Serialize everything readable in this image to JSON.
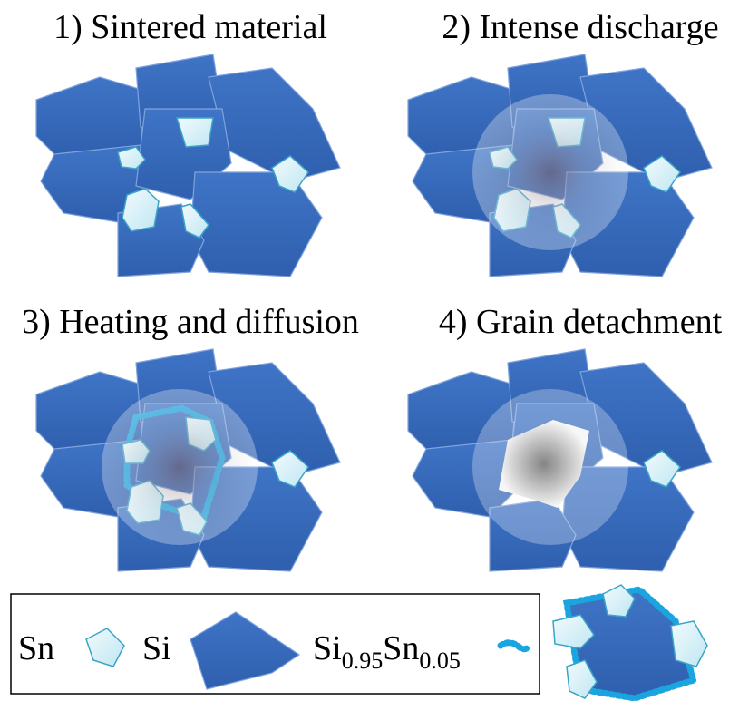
{
  "panels": [
    {
      "title": "1) Sintered material"
    },
    {
      "title": "2) Intense discharge"
    },
    {
      "title": "3) Heating and diffusion"
    },
    {
      "title": "4) Grain detachment"
    }
  ],
  "legend": {
    "sn": "Sn",
    "si": "Si",
    "alloy": {
      "base1": "Si",
      "sub1": "0.95",
      "base2": "Sn",
      "sub2": "0.05"
    }
  }
}
